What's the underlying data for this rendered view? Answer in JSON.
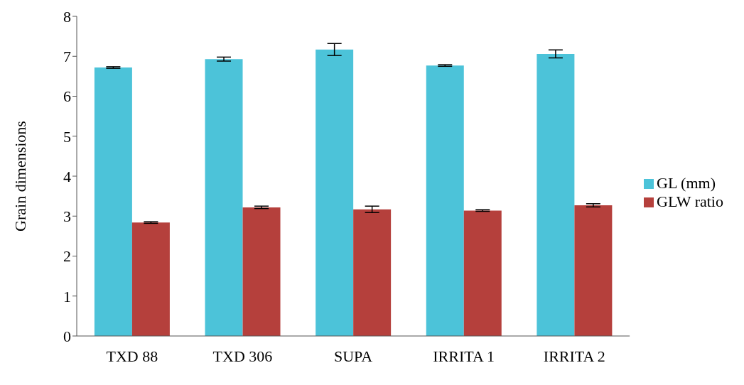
{
  "chart_data": {
    "type": "bar",
    "ylabel": "Grain dimensions",
    "categories": [
      "TXD 88",
      "TXD 306",
      "SUPA",
      "IRRITA 1",
      "IRRITA 2"
    ],
    "series": [
      {
        "name": "GL (mm)",
        "color": "#4cc3d9",
        "values": [
          6.72,
          6.93,
          7.17,
          6.77,
          7.06
        ],
        "errors": [
          0.02,
          0.05,
          0.15,
          0.02,
          0.1
        ]
      },
      {
        "name": "GLW ratio",
        "color": "#b5403c",
        "values": [
          2.84,
          3.22,
          3.17,
          3.14,
          3.27
        ],
        "errors": [
          0.02,
          0.03,
          0.08,
          0.02,
          0.04
        ]
      }
    ],
    "ylim": [
      0,
      8
    ],
    "yticks": [
      0,
      1,
      2,
      3,
      4,
      5,
      6,
      7,
      8
    ],
    "grid": false,
    "legend": "right"
  }
}
